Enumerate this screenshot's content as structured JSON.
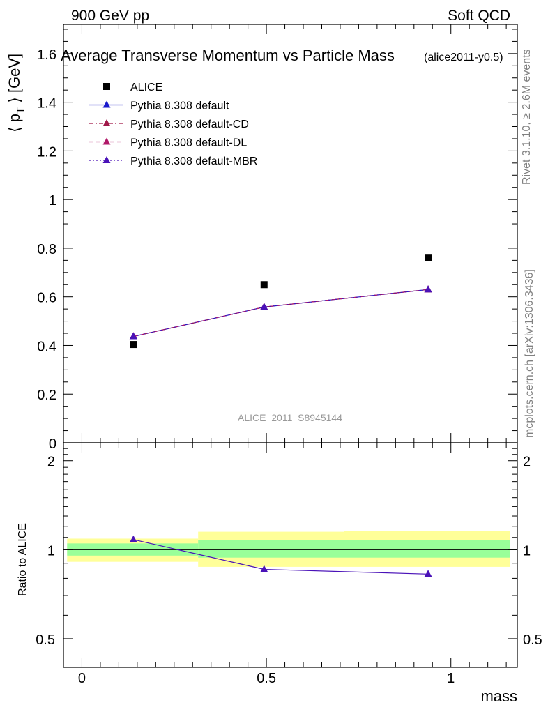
{
  "header": {
    "left": "900 GeV pp",
    "right": "Soft QCD"
  },
  "side_labels": {
    "rivet": "Rivet 3.1.10, ≥ 2.6M events",
    "mcplots": "mcplots.cern.ch [arXiv:1306.3436]"
  },
  "chart_data": [
    {
      "type": "scatter",
      "title": "Average Transverse Momentum vs Particle Mass",
      "subtitle": "(alice2011-y0.5)",
      "watermark": "ALICE_2011_S8945144",
      "xlabel": "mass",
      "ylabel": "⟨ p",
      "ylabel_sub": "T",
      "ylabel_tail": " ⟩ [GeV]",
      "xlim": [
        -0.05,
        1.18
      ],
      "ylim": [
        0,
        1.72
      ],
      "grid": false,
      "legend_position": "top-left",
      "y_ticks": [
        0,
        0.2,
        0.4,
        0.6,
        0.8,
        1,
        1.2,
        1.4,
        1.6
      ],
      "y_tick_labels": [
        "0",
        "0.2",
        "0.4",
        "0.6",
        "0.8",
        "1",
        "1.2",
        "1.4",
        "1.6"
      ],
      "series": [
        {
          "name": "ALICE",
          "marker": "square",
          "color": "#000000",
          "line": "none",
          "x": [
            0.1396,
            0.4937,
            0.9383
          ],
          "y": [
            0.404,
            0.65,
            0.762
          ]
        },
        {
          "name": "Pythia 8.308 default",
          "marker": "triangle",
          "color": "#1a1acc",
          "line": "solid",
          "x": [
            0.1396,
            0.4937,
            0.9383
          ],
          "y": [
            0.437,
            0.558,
            0.63
          ]
        },
        {
          "name": "Pythia 8.308 default-CD",
          "marker": "triangle",
          "color": "#a01848",
          "line": "dashdot",
          "x": [
            0.1396,
            0.4937,
            0.9383
          ],
          "y": [
            0.437,
            0.558,
            0.63
          ]
        },
        {
          "name": "Pythia 8.308 default-DL",
          "marker": "triangle",
          "color": "#b01868",
          "line": "dashed",
          "x": [
            0.1396,
            0.4937,
            0.9383
          ],
          "y": [
            0.437,
            0.558,
            0.63
          ]
        },
        {
          "name": "Pythia 8.308 default-MBR",
          "marker": "triangle",
          "color": "#4a12b8",
          "line": "dotted",
          "x": [
            0.1396,
            0.4937,
            0.9383
          ],
          "y": [
            0.437,
            0.558,
            0.63
          ]
        }
      ]
    },
    {
      "type": "line",
      "ylabel": "Ratio to ALICE",
      "xlabel": "mass",
      "xlim": [
        -0.05,
        1.18
      ],
      "ylim": [
        0.4,
        2.3
      ],
      "y_scale": "log",
      "x_ticks": [
        0,
        0.5,
        1
      ],
      "x_tick_labels": [
        "0",
        "0.5",
        "1"
      ],
      "y_ticks": [
        0.5,
        1,
        2
      ],
      "y_tick_labels": [
        "0.5",
        "1",
        "2"
      ],
      "bands": [
        {
          "x_range": [
            -0.04,
            0.315
          ],
          "stat": [
            0.955,
            1.05
          ],
          "total": [
            0.91,
            1.09
          ]
        },
        {
          "x_range": [
            0.315,
            0.71
          ],
          "stat": [
            0.94,
            1.08
          ],
          "total": [
            0.875,
            1.15
          ]
        },
        {
          "x_range": [
            0.71,
            1.16
          ],
          "stat": [
            0.94,
            1.08
          ],
          "total": [
            0.875,
            1.16
          ]
        }
      ],
      "band_colors": {
        "stat": "#99ff99",
        "total": "#ffff99"
      },
      "series": [
        {
          "name": "Pythia 8.308 default-MBR",
          "color": "#4a12b8",
          "x": [
            0.1396,
            0.4937,
            0.9383
          ],
          "y": [
            1.082,
            0.858,
            0.827
          ]
        }
      ]
    }
  ]
}
